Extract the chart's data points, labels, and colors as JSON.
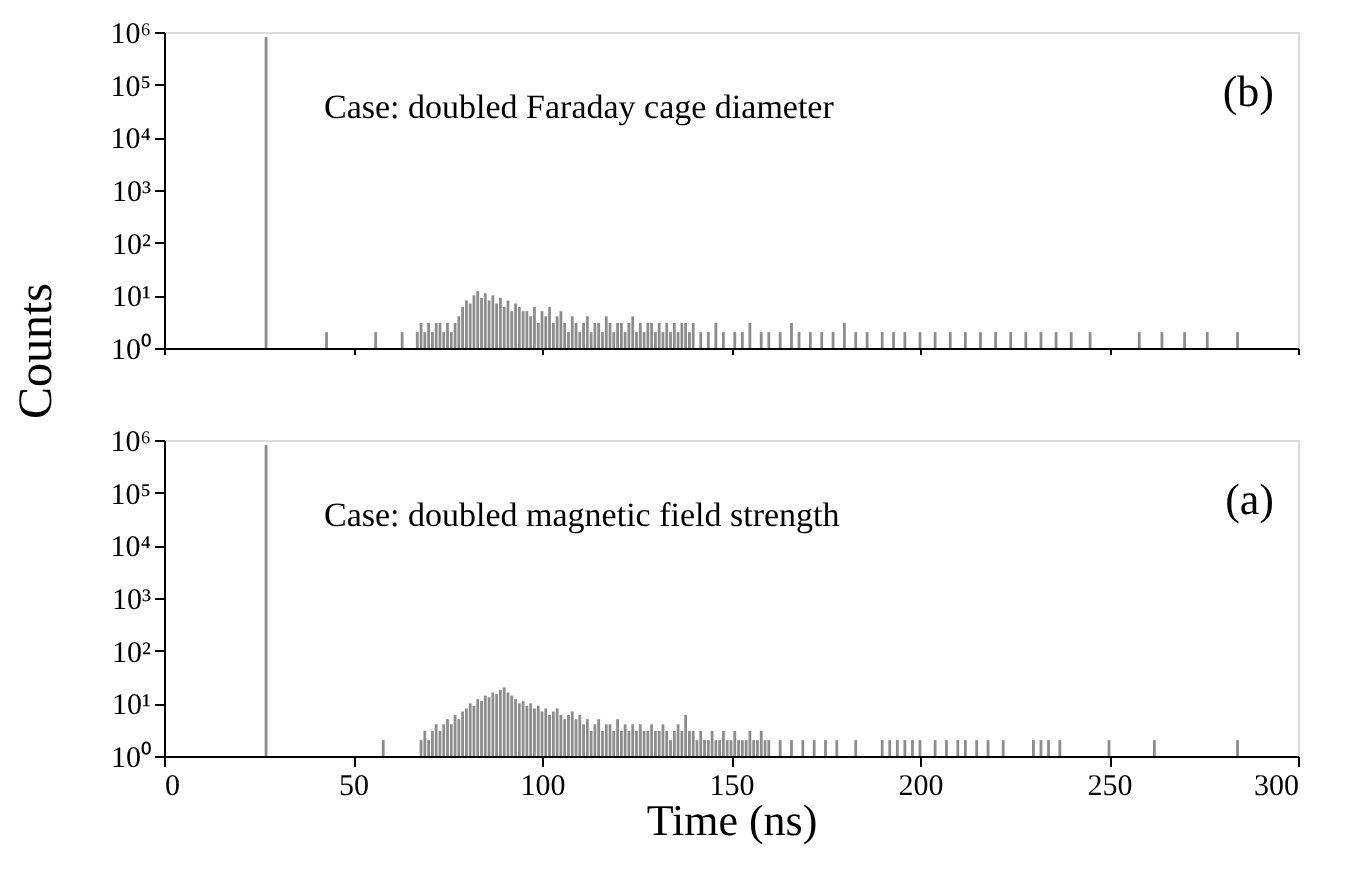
{
  "chart_data": [
    {
      "type": "bar",
      "ylabel": "Counts",
      "log": "y",
      "tick_labels": "y",
      "xlim": [
        0,
        300
      ],
      "xticks": [
        0,
        50,
        100,
        150,
        200,
        250,
        300
      ],
      "ylim": [
        1,
        1000000
      ],
      "yticks": [
        {
          "value": 1,
          "label": "10⁰"
        },
        {
          "value": 10,
          "label": "10¹"
        },
        {
          "value": 100,
          "label": "10²"
        },
        {
          "value": 1000,
          "label": "10³"
        },
        {
          "value": 10000,
          "label": "10⁴"
        },
        {
          "value": 100000,
          "label": "10⁵"
        },
        {
          "value": 1000000,
          "label": "10⁶"
        }
      ],
      "annotations": [
        "Case: doubled Faraday cage diameter",
        "(b)"
      ],
      "x": [
        27,
        43,
        56,
        63,
        67,
        68,
        69,
        70,
        71,
        72,
        73,
        74,
        75,
        76,
        77,
        78,
        79,
        80,
        81,
        82,
        83,
        84,
        85,
        86,
        87,
        88,
        89,
        90,
        91,
        92,
        93,
        94,
        95,
        96,
        97,
        98,
        99,
        100,
        101,
        102,
        103,
        104,
        105,
        106,
        107,
        108,
        109,
        110,
        111,
        112,
        113,
        114,
        115,
        116,
        117,
        118,
        119,
        120,
        121,
        122,
        123,
        124,
        125,
        126,
        127,
        128,
        129,
        130,
        131,
        132,
        133,
        134,
        135,
        136,
        137,
        138,
        139,
        140,
        142,
        144,
        146,
        148,
        151,
        153,
        155,
        158,
        160,
        163,
        166,
        168,
        171,
        174,
        177,
        180,
        183,
        186,
        190,
        193,
        196,
        200,
        204,
        208,
        212,
        216,
        220,
        224,
        228,
        232,
        236,
        240,
        245,
        258,
        264,
        270,
        276,
        284
      ],
      "series": [
        {
          "color": "#8c8c8c",
          "values": [
            800000,
            2,
            2,
            2,
            2,
            3,
            2,
            3,
            2,
            3,
            3,
            2,
            3,
            2,
            3,
            4,
            6,
            8,
            7,
            10,
            12,
            9,
            11,
            8,
            10,
            7,
            9,
            6,
            8,
            5,
            7,
            6,
            5,
            5,
            4,
            6,
            3,
            5,
            4,
            6,
            3,
            4,
            5,
            3,
            2,
            4,
            3,
            2,
            3,
            4,
            2,
            3,
            3,
            2,
            4,
            3,
            2,
            3,
            3,
            2,
            3,
            4,
            2,
            3,
            2,
            3,
            3,
            2,
            3,
            2,
            3,
            2,
            3,
            2,
            3,
            3,
            2,
            3,
            2,
            2,
            3,
            2,
            2,
            2,
            3,
            2,
            2,
            2,
            3,
            2,
            2,
            2,
            2,
            3,
            2,
            2,
            2,
            2,
            2,
            2,
            2,
            2,
            2,
            2,
            2,
            2,
            2,
            2,
            2,
            2,
            2,
            2,
            2,
            2,
            2,
            2
          ]
        }
      ]
    },
    {
      "type": "bar",
      "xlabel": "Time (ns)",
      "log": "y",
      "xlim": [
        0,
        300
      ],
      "xticks": [
        0,
        50,
        100,
        150,
        200,
        250,
        300
      ],
      "ylim": [
        1,
        1000000
      ],
      "yticks": [
        {
          "value": 1,
          "label": "10⁰"
        },
        {
          "value": 10,
          "label": "10¹"
        },
        {
          "value": 100,
          "label": "10²"
        },
        {
          "value": 1000,
          "label": "10³"
        },
        {
          "value": 10000,
          "label": "10⁴"
        },
        {
          "value": 100000,
          "label": "10⁵"
        },
        {
          "value": 1000000,
          "label": "10⁶"
        }
      ],
      "annotations": [
        "Case: doubled magnetic field strength",
        "(a)"
      ],
      "x": [
        27,
        58,
        68,
        69,
        70,
        71,
        72,
        73,
        74,
        75,
        76,
        77,
        78,
        79,
        80,
        81,
        82,
        83,
        84,
        85,
        86,
        87,
        88,
        89,
        90,
        91,
        92,
        93,
        94,
        95,
        96,
        97,
        98,
        99,
        100,
        101,
        102,
        103,
        104,
        105,
        106,
        107,
        108,
        109,
        110,
        111,
        112,
        113,
        114,
        115,
        116,
        117,
        118,
        119,
        120,
        121,
        122,
        123,
        124,
        125,
        126,
        127,
        128,
        129,
        130,
        131,
        132,
        133,
        134,
        135,
        136,
        137,
        138,
        139,
        140,
        141,
        142,
        143,
        144,
        145,
        146,
        147,
        148,
        149,
        150,
        151,
        152,
        153,
        154,
        155,
        156,
        157,
        158,
        159,
        160,
        163,
        166,
        169,
        172,
        175,
        178,
        183,
        190,
        192,
        194,
        196,
        198,
        200,
        204,
        207,
        210,
        212,
        215,
        218,
        222,
        230,
        232,
        234,
        237,
        250,
        262,
        284
      ],
      "series": [
        {
          "color": "#8c8c8c",
          "values": [
            800000,
            2,
            2,
            3,
            2,
            3,
            4,
            3,
            4,
            5,
            4,
            6,
            5,
            7,
            8,
            10,
            9,
            12,
            11,
            14,
            13,
            16,
            15,
            18,
            20,
            16,
            14,
            12,
            10,
            11,
            9,
            10,
            8,
            9,
            7,
            8,
            6,
            7,
            8,
            6,
            5,
            6,
            7,
            5,
            6,
            4,
            5,
            3,
            4,
            5,
            3,
            4,
            4,
            3,
            5,
            3,
            4,
            3,
            4,
            3,
            4,
            3,
            3,
            4,
            3,
            3,
            4,
            3,
            2,
            3,
            4,
            3,
            6,
            3,
            3,
            2,
            3,
            2,
            2,
            3,
            2,
            2,
            3,
            2,
            2,
            3,
            2,
            2,
            2,
            3,
            2,
            2,
            3,
            2,
            2,
            2,
            2,
            2,
            2,
            2,
            2,
            2,
            2,
            2,
            2,
            2,
            2,
            2,
            2,
            2,
            2,
            2,
            2,
            2,
            2,
            2,
            2,
            2,
            2,
            2,
            2,
            2
          ]
        }
      ]
    }
  ]
}
